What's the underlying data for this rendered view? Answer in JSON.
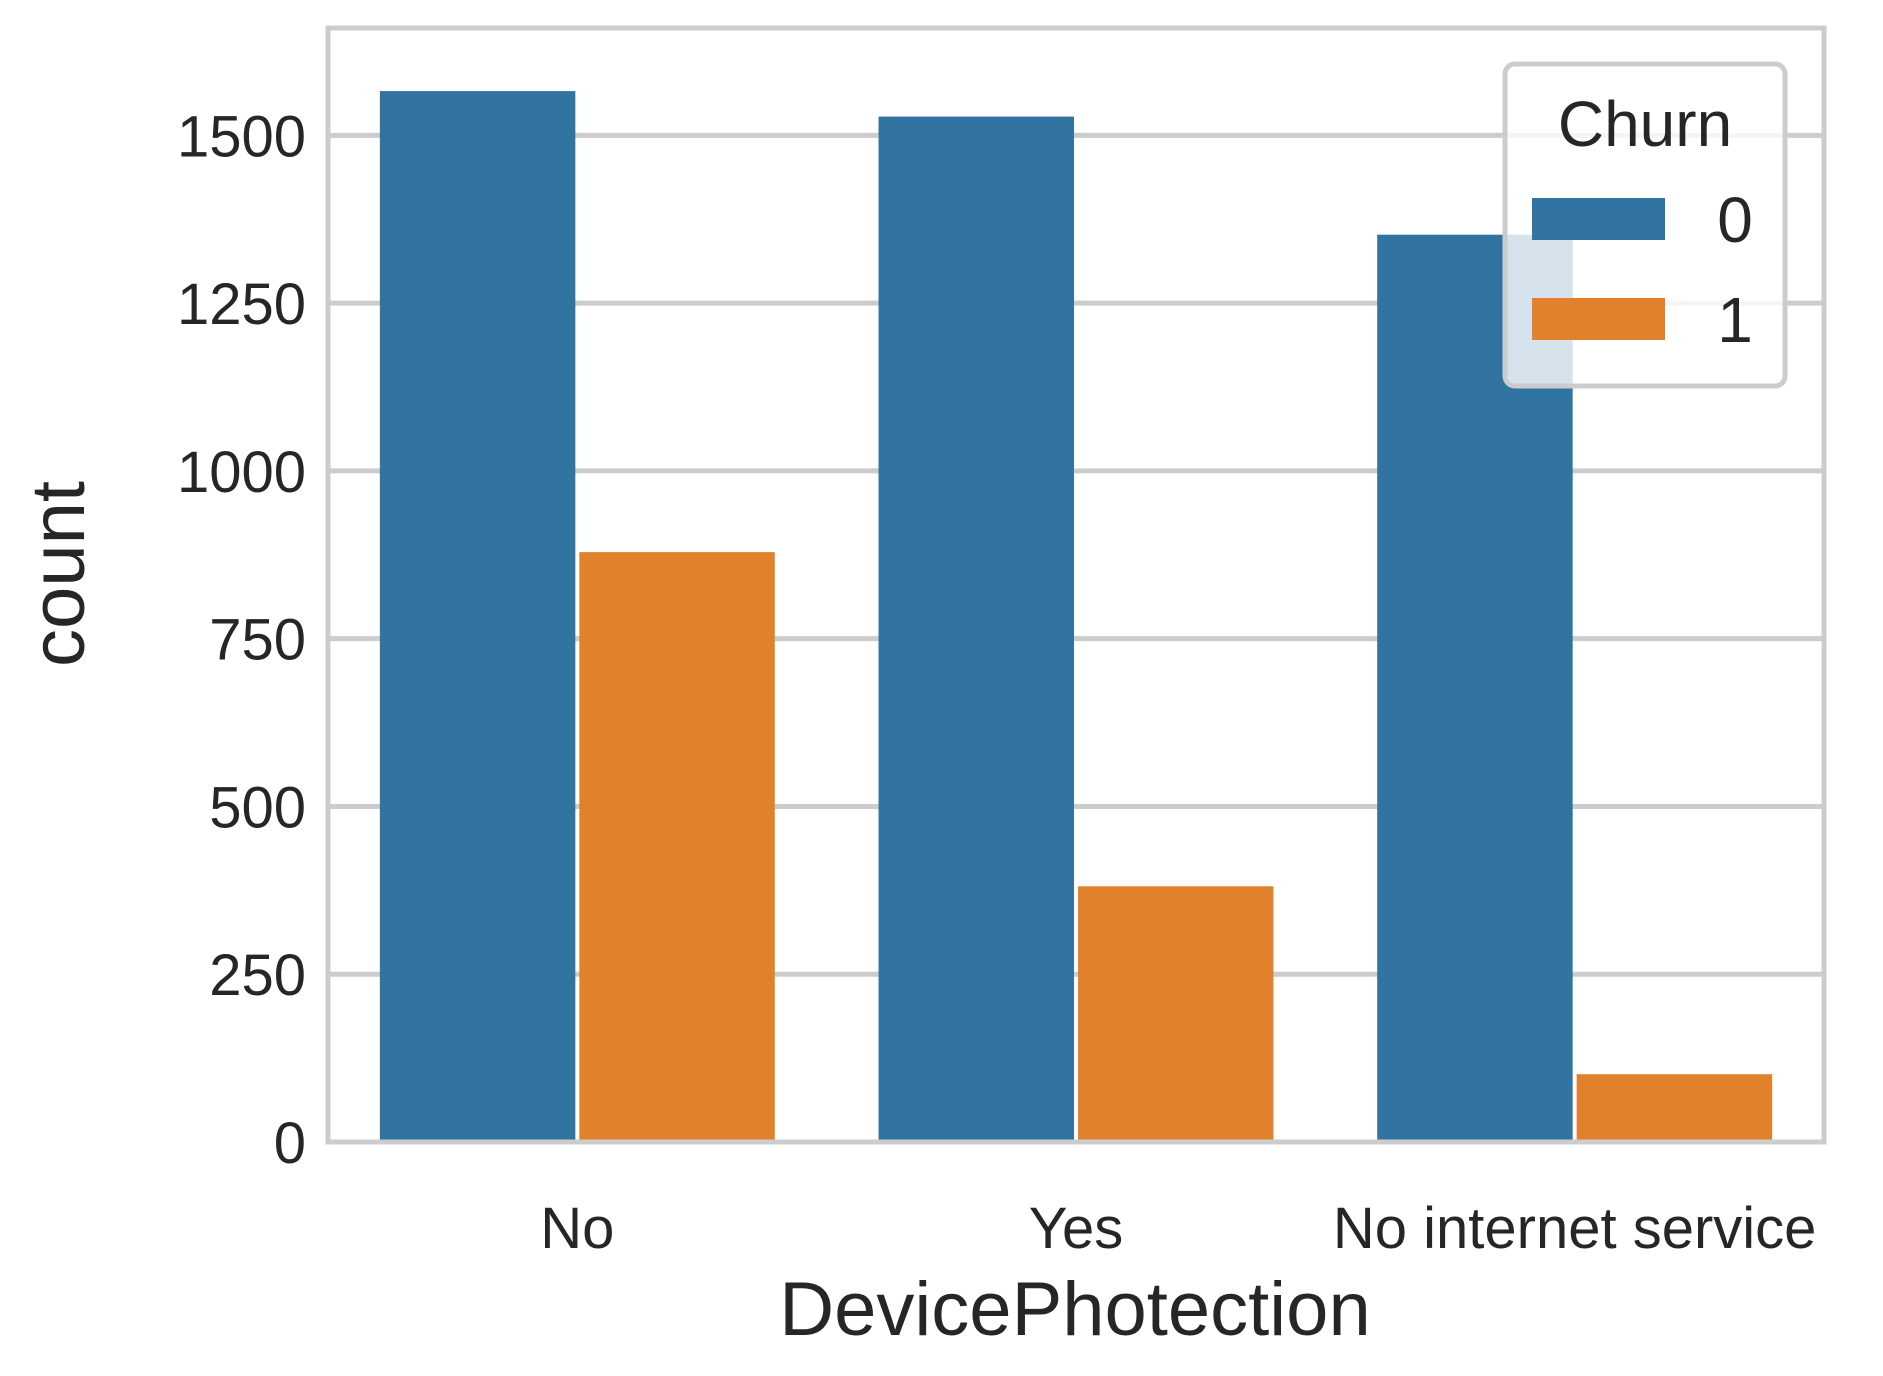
{
  "chart_data": {
    "type": "bar",
    "title": "",
    "xlabel": "DevicePhotection",
    "ylabel": "count",
    "categories": [
      "No",
      "Yes",
      "No internet service"
    ],
    "series": [
      {
        "name": "0",
        "values": [
          1566,
          1528,
          1352
        ],
        "color": "#3274a1"
      },
      {
        "name": "1",
        "values": [
          879,
          381,
          101
        ],
        "color": "#e1812c"
      }
    ],
    "ylim": [
      0,
      1660
    ],
    "yticks": [
      0,
      250,
      500,
      750,
      1000,
      1250,
      1500
    ],
    "grid": true,
    "legend": {
      "title": "Churn",
      "placement": "top-right"
    },
    "colors": {
      "grid": "#cccccc",
      "axis": "#cccccc",
      "text": "#262626",
      "background": "#ffffff"
    }
  }
}
